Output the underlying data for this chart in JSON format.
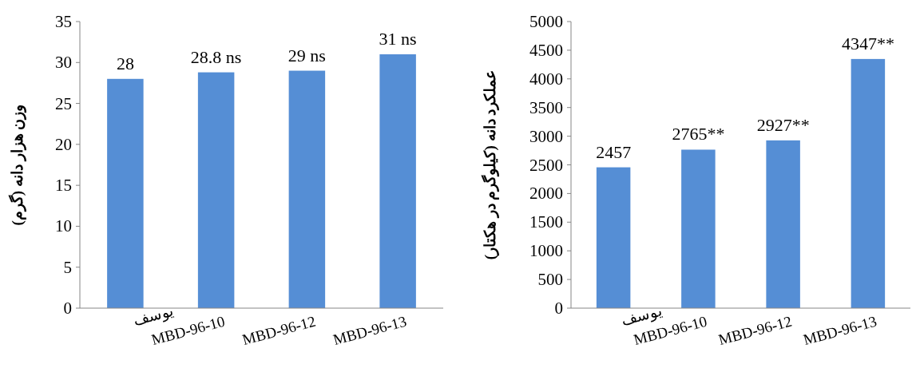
{
  "chart_data": [
    {
      "type": "bar",
      "categories": [
        "یوسف",
        "MBD-96-10",
        "MBD-96-12",
        "MBD-96-13"
      ],
      "values": [
        28,
        28.8,
        29,
        31
      ],
      "value_labels": [
        "28",
        "28.8 ns",
        "29 ns",
        "31 ns"
      ],
      "color": "#558ed5",
      "ylim": [
        0,
        35
      ],
      "yticks": [
        0,
        5,
        10,
        15,
        20,
        25,
        30,
        35
      ],
      "ylabel": "وزن هزار دانه (گرم)"
    },
    {
      "type": "bar",
      "categories": [
        "یوسف",
        "MBD-96-10",
        "MBD-96-12",
        "MBD-96-13"
      ],
      "values": [
        2457,
        2765,
        2927,
        4347
      ],
      "value_labels": [
        "2457",
        "2765**",
        "2927**",
        "4347**"
      ],
      "color": "#558ed5",
      "ylim": [
        0,
        5000
      ],
      "yticks": [
        0,
        500,
        1000,
        1500,
        2000,
        2500,
        3000,
        3500,
        4000,
        4500,
        5000
      ],
      "ylabel": "عملکرد دانه (کیلوگرم در هکتار)"
    }
  ]
}
